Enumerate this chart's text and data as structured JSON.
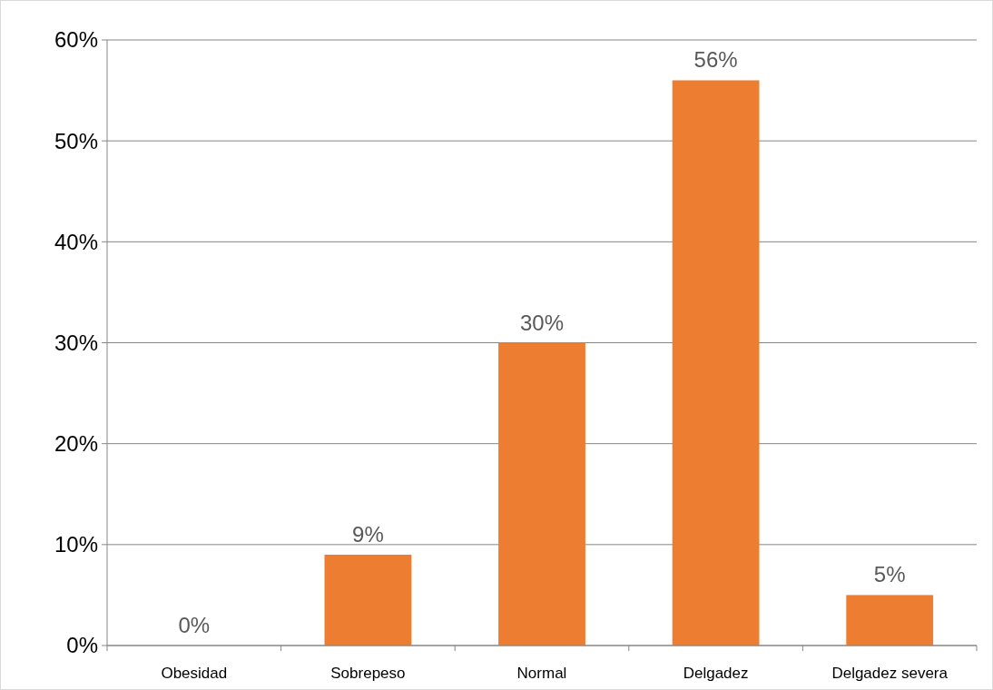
{
  "chart_data": {
    "type": "bar",
    "categories": [
      "Obesidad",
      "Sobrepeso",
      "Normal",
      "Delgadez",
      "Delgadez severa"
    ],
    "values": [
      0,
      9,
      30,
      56,
      5
    ],
    "color": "#ed7d31",
    "value_labels": [
      "0%",
      "9%",
      "30%",
      "56%",
      "5%"
    ],
    "ylim": [
      0,
      60
    ],
    "yticks": [
      {
        "value": 0,
        "label": "0%"
      },
      {
        "value": 10,
        "label": "10%"
      },
      {
        "value": 20,
        "label": "20%"
      },
      {
        "value": 30,
        "label": "30%"
      },
      {
        "value": 40,
        "label": "40%"
      },
      {
        "value": 50,
        "label": "50%"
      },
      {
        "value": 60,
        "label": "60%"
      }
    ],
    "grid": "y"
  }
}
